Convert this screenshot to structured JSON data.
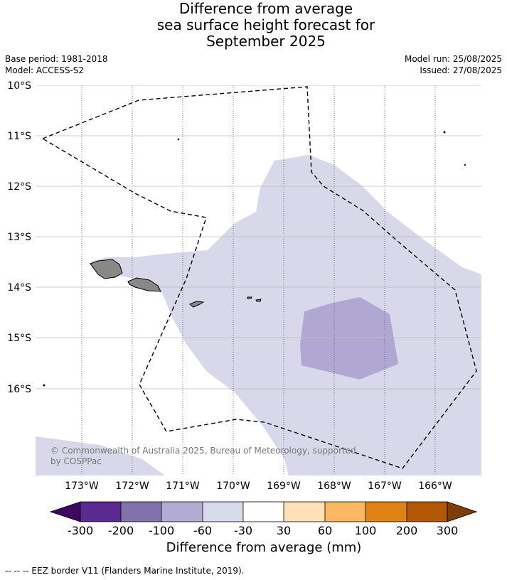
{
  "title": {
    "line1": "Difference from average",
    "line2": "sea surface height forecast for",
    "line3": "September 2025"
  },
  "meta": {
    "base_period": "Base period: 1981-2018",
    "model": "Model: ACCESS-S2",
    "model_run": "Model run: 25/08/2025",
    "issued": "Issued: 27/08/2025"
  },
  "map": {
    "lat_labels": [
      "10°S",
      "11°S",
      "12°S",
      "13°S",
      "14°S",
      "15°S",
      "16°S"
    ],
    "lon_labels": [
      "173°W",
      "172°W",
      "171°W",
      "170°W",
      "169°W",
      "168°W",
      "167°W",
      "166°W"
    ],
    "copyright_line1": "© Commonwealth of Australia 2025, Bureau of Meteorology, supported",
    "copyright_line2": "by COSPPac",
    "colors": {
      "ocean_neutral": "#ffffff",
      "band_minus60_minus30": "#d8d8ea",
      "band_minus100_minus60": "#b0a8d2",
      "land": "#888888",
      "eez_border": "#000000"
    }
  },
  "colorbar": {
    "title": "Difference from average (mm)",
    "tick_labels": [
      "-300",
      "-200",
      "-100",
      "-60",
      "-30",
      "30",
      "60",
      "100",
      "200",
      "300"
    ],
    "colors": [
      "#3b0a5e",
      "#5c2a8e",
      "#8073ac",
      "#b2abd2",
      "#d8daeb",
      "#ffffff",
      "#fee0b6",
      "#fbb761",
      "#e08214",
      "#b35806",
      "#7f3b08"
    ]
  },
  "footnote": "-- -- -- EEZ border V11 (Flanders Marine Institute, 2019)."
}
